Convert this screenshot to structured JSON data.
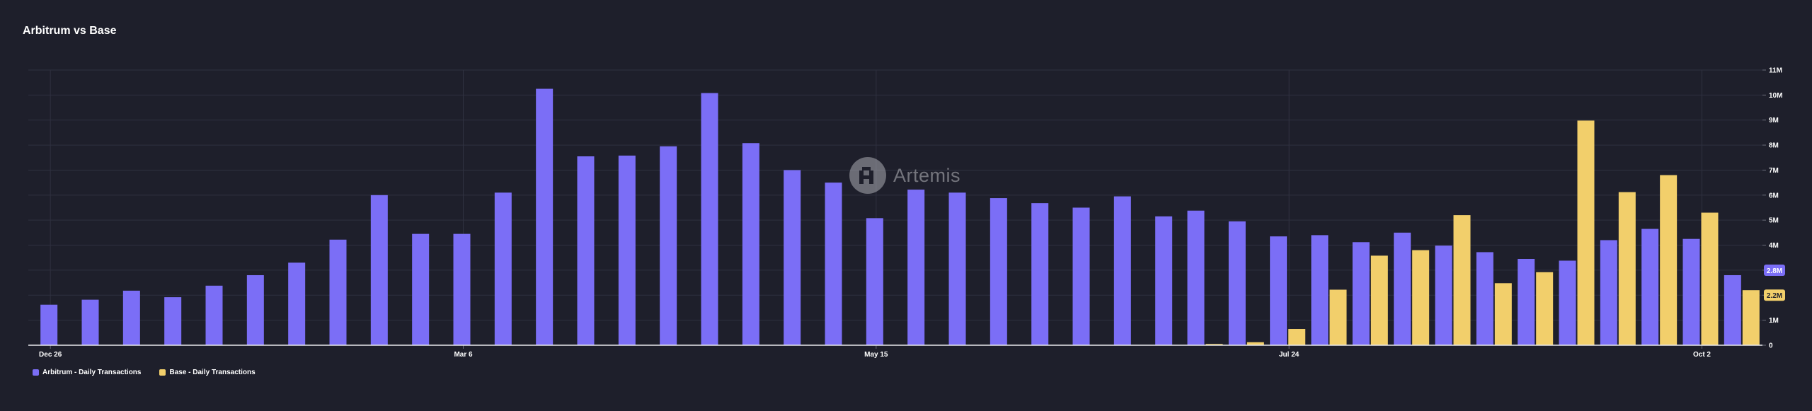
{
  "chart_data": {
    "type": "bar",
    "title": "Arbitrum vs Base",
    "xlabel": "",
    "ylabel": "",
    "ylim": [
      0,
      11000000
    ],
    "y_ticks": [
      "0",
      "1M",
      "2M",
      "3M",
      "4M",
      "5M",
      "6M",
      "7M",
      "8M",
      "9M",
      "10M",
      "11M"
    ],
    "x_tick_labels": [
      {
        "label": "Dec 26",
        "index": 0
      },
      {
        "label": "Mar 6",
        "index": 10
      },
      {
        "label": "May 15",
        "index": 20
      },
      {
        "label": "Jul 24",
        "index": 30
      },
      {
        "label": "Oct 2",
        "index": 40
      }
    ],
    "grid": true,
    "legend_position": "bottom-left",
    "series": [
      {
        "name": "Arbitrum - Daily Transactions",
        "color": "#7b6ef6",
        "values": [
          1.62,
          1.82,
          2.18,
          1.92,
          2.38,
          2.8,
          3.3,
          4.22,
          6.0,
          4.45,
          4.45,
          6.1,
          10.25,
          7.55,
          7.58,
          7.95,
          10.08,
          8.08,
          7.0,
          6.5,
          5.08,
          6.22,
          6.1,
          5.88,
          5.68,
          5.5,
          5.95,
          5.15,
          5.38,
          4.95,
          4.35,
          4.4,
          4.12,
          4.5,
          3.98,
          3.72,
          3.45,
          3.38,
          4.2,
          4.65,
          4.25,
          2.8
        ],
        "unit": "M"
      },
      {
        "name": "Base - Daily Transactions",
        "color": "#f2cf6b",
        "start_index": 28,
        "values": [
          0.05,
          0.12,
          0.65,
          2.22,
          3.58,
          3.8,
          5.2,
          2.48,
          2.92,
          8.98,
          6.12,
          6.8,
          5.3,
          2.2
        ],
        "unit": "M"
      }
    ],
    "end_labels": [
      {
        "series": 0,
        "text": "2.8M",
        "color": "#7b6ef6"
      },
      {
        "series": 1,
        "text": "2.2M",
        "color": "#f2cf6b"
      }
    ]
  },
  "legend": [
    {
      "label": "Arbitrum - Daily Transactions",
      "color": "#7b6ef6"
    },
    {
      "label": "Base - Daily Transactions",
      "color": "#f2cf6b"
    }
  ],
  "watermark": {
    "text": "Artemis"
  }
}
